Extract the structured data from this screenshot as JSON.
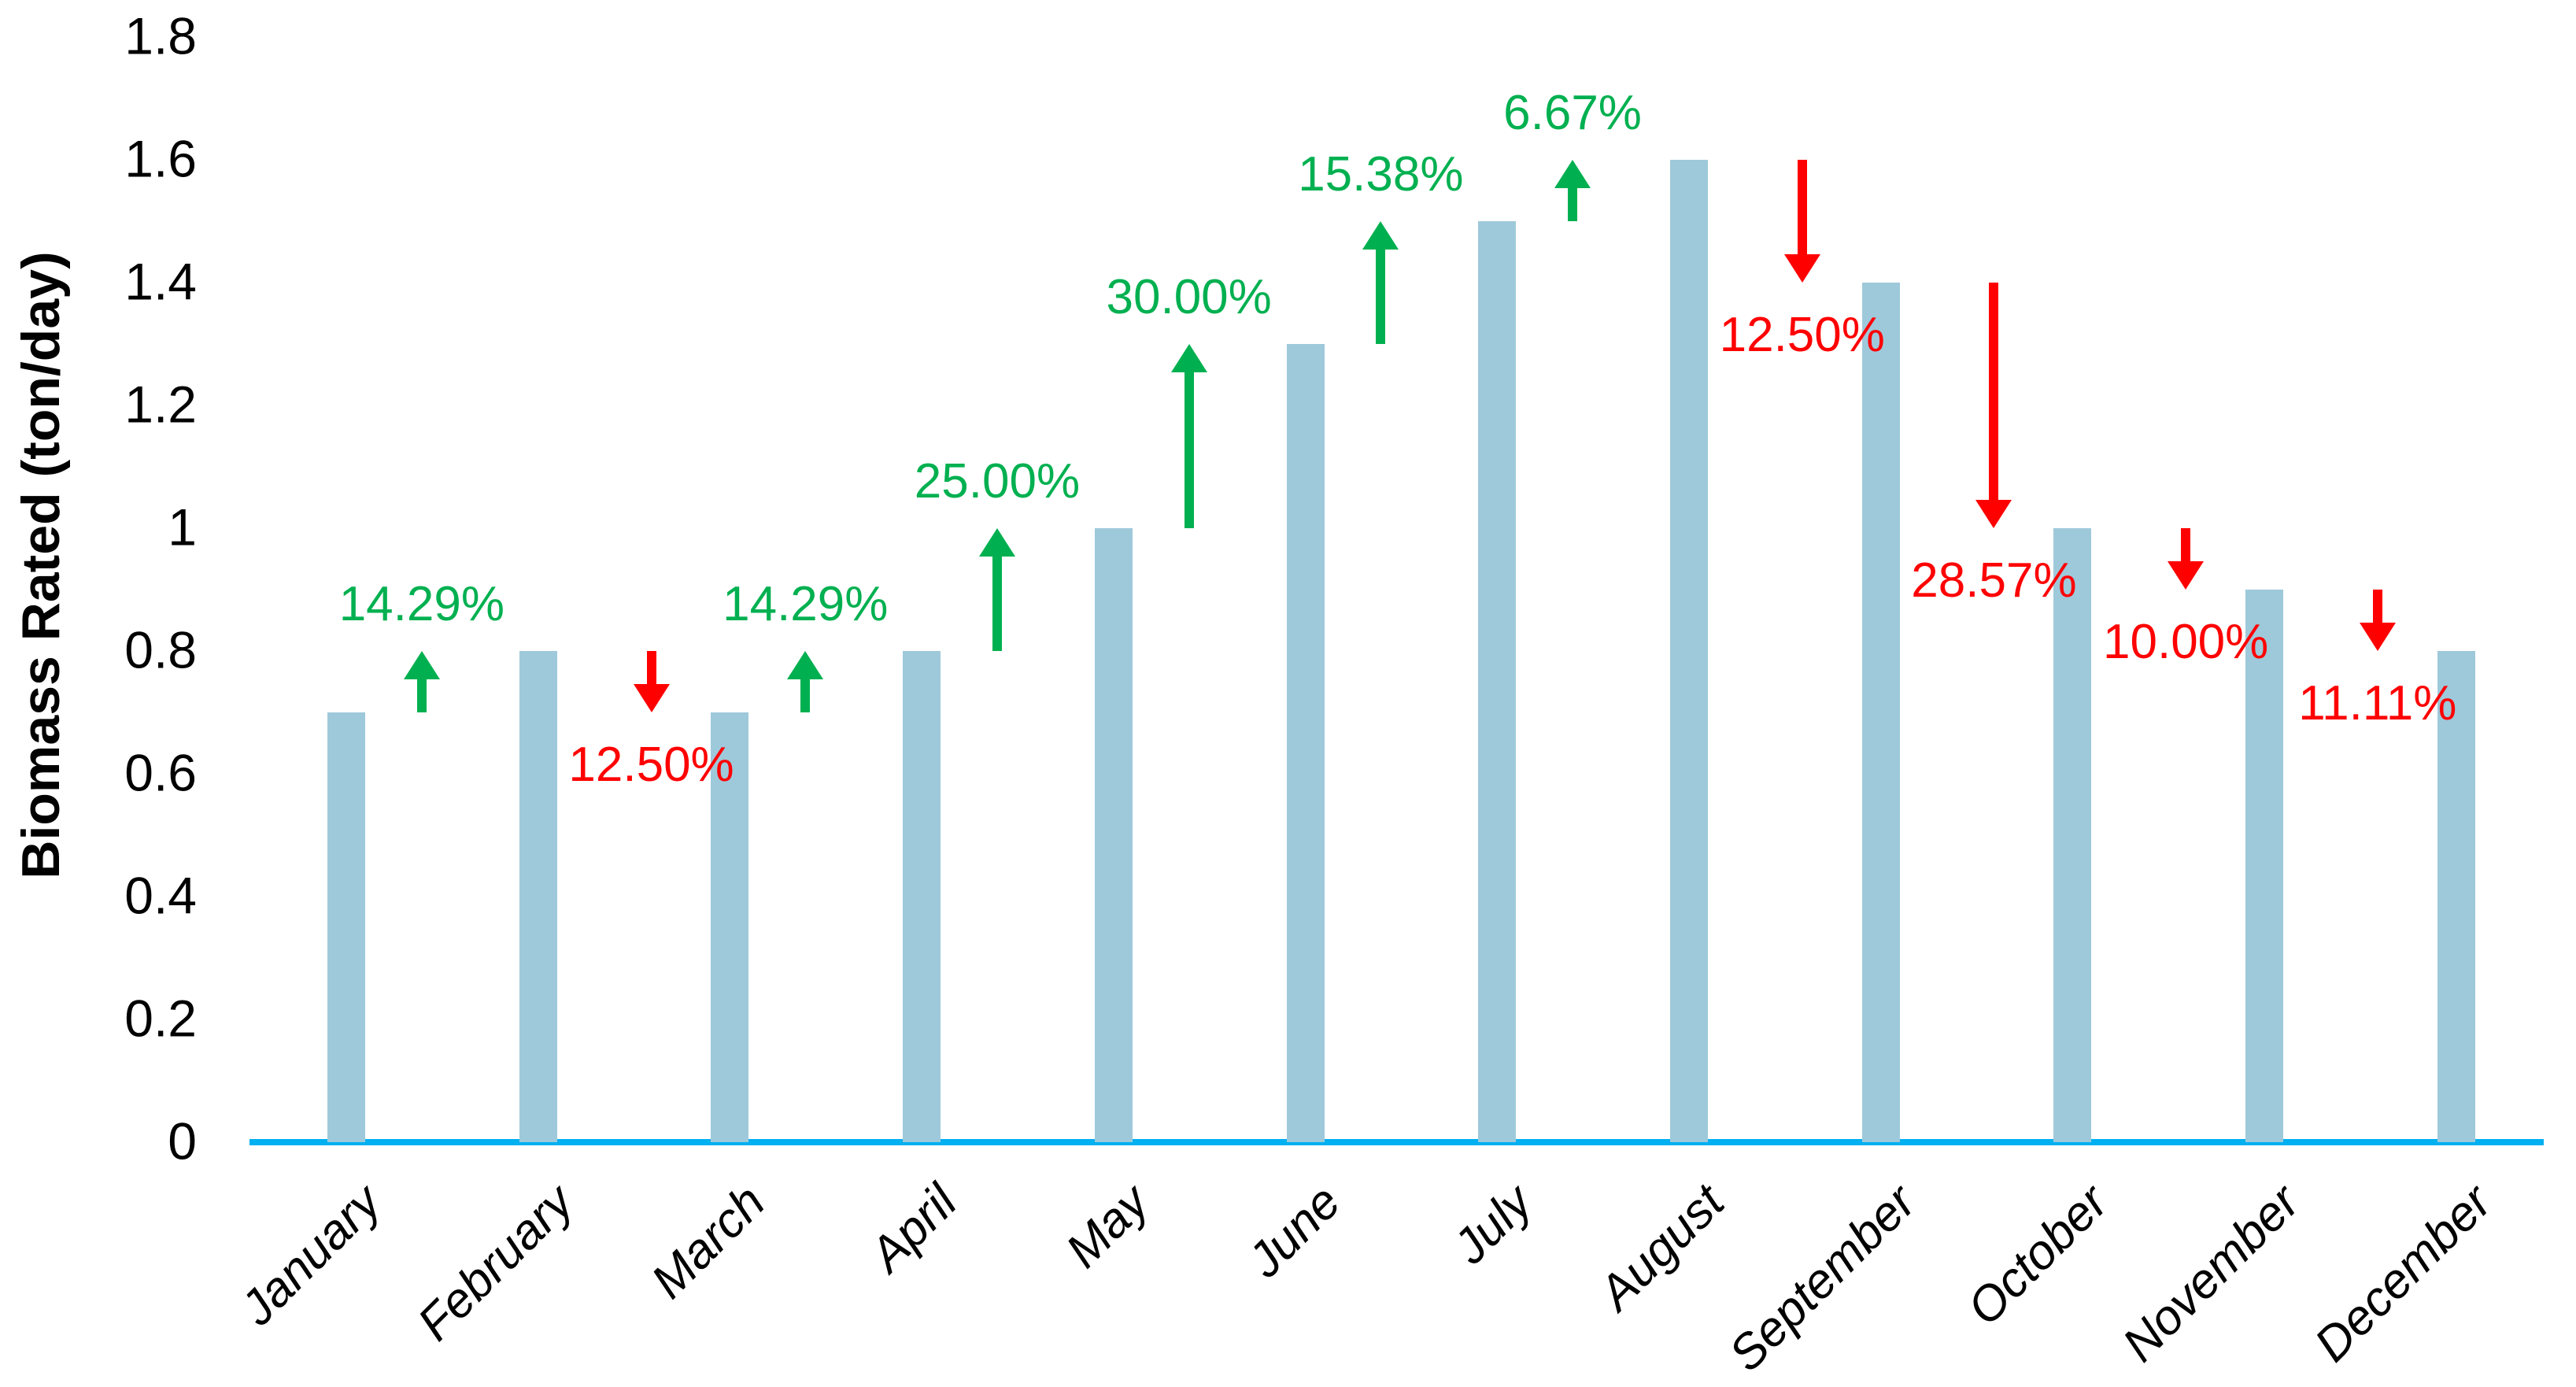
{
  "chart_data": {
    "type": "bar",
    "title": "",
    "xlabel": "",
    "ylabel": "Biomass Rated (ton/day)",
    "categories": [
      "January",
      "February",
      "March",
      "April",
      "May",
      "June",
      "July",
      "August",
      "September",
      "October",
      "November",
      "December"
    ],
    "values": [
      0.7,
      0.8,
      0.7,
      0.8,
      1.0,
      1.3,
      1.5,
      1.6,
      1.4,
      1.0,
      0.9,
      0.8
    ],
    "ylim": [
      0,
      1.8
    ],
    "ytick_labels": [
      "0",
      "0.2",
      "0.4",
      "0.6",
      "0.8",
      "1",
      "1.2",
      "1.4",
      "1.6",
      "1.8"
    ],
    "grid": false,
    "legend_position": "none",
    "bar_color": "#9EC9DA",
    "baseline_color": "#00B0F0",
    "increase_color": "#00B050",
    "decrease_color": "#FF0000",
    "changes": [
      {
        "from": "January",
        "to": "February",
        "label": "14.29%",
        "direction": "up"
      },
      {
        "from": "February",
        "to": "March",
        "label": "12.50%",
        "direction": "down"
      },
      {
        "from": "March",
        "to": "April",
        "label": "14.29%",
        "direction": "up"
      },
      {
        "from": "April",
        "to": "May",
        "label": "25.00%",
        "direction": "up"
      },
      {
        "from": "May",
        "to": "June",
        "label": "30.00%",
        "direction": "up"
      },
      {
        "from": "June",
        "to": "July",
        "label": "15.38%",
        "direction": "up"
      },
      {
        "from": "July",
        "to": "August",
        "label": "6.67%",
        "direction": "up"
      },
      {
        "from": "August",
        "to": "September",
        "label": "12.50%",
        "direction": "down"
      },
      {
        "from": "September",
        "to": "October",
        "label": "28.57%",
        "direction": "down"
      },
      {
        "from": "October",
        "to": "November",
        "label": "10.00%",
        "direction": "down"
      },
      {
        "from": "November",
        "to": "December",
        "label": "11.11%",
        "direction": "down"
      }
    ]
  }
}
